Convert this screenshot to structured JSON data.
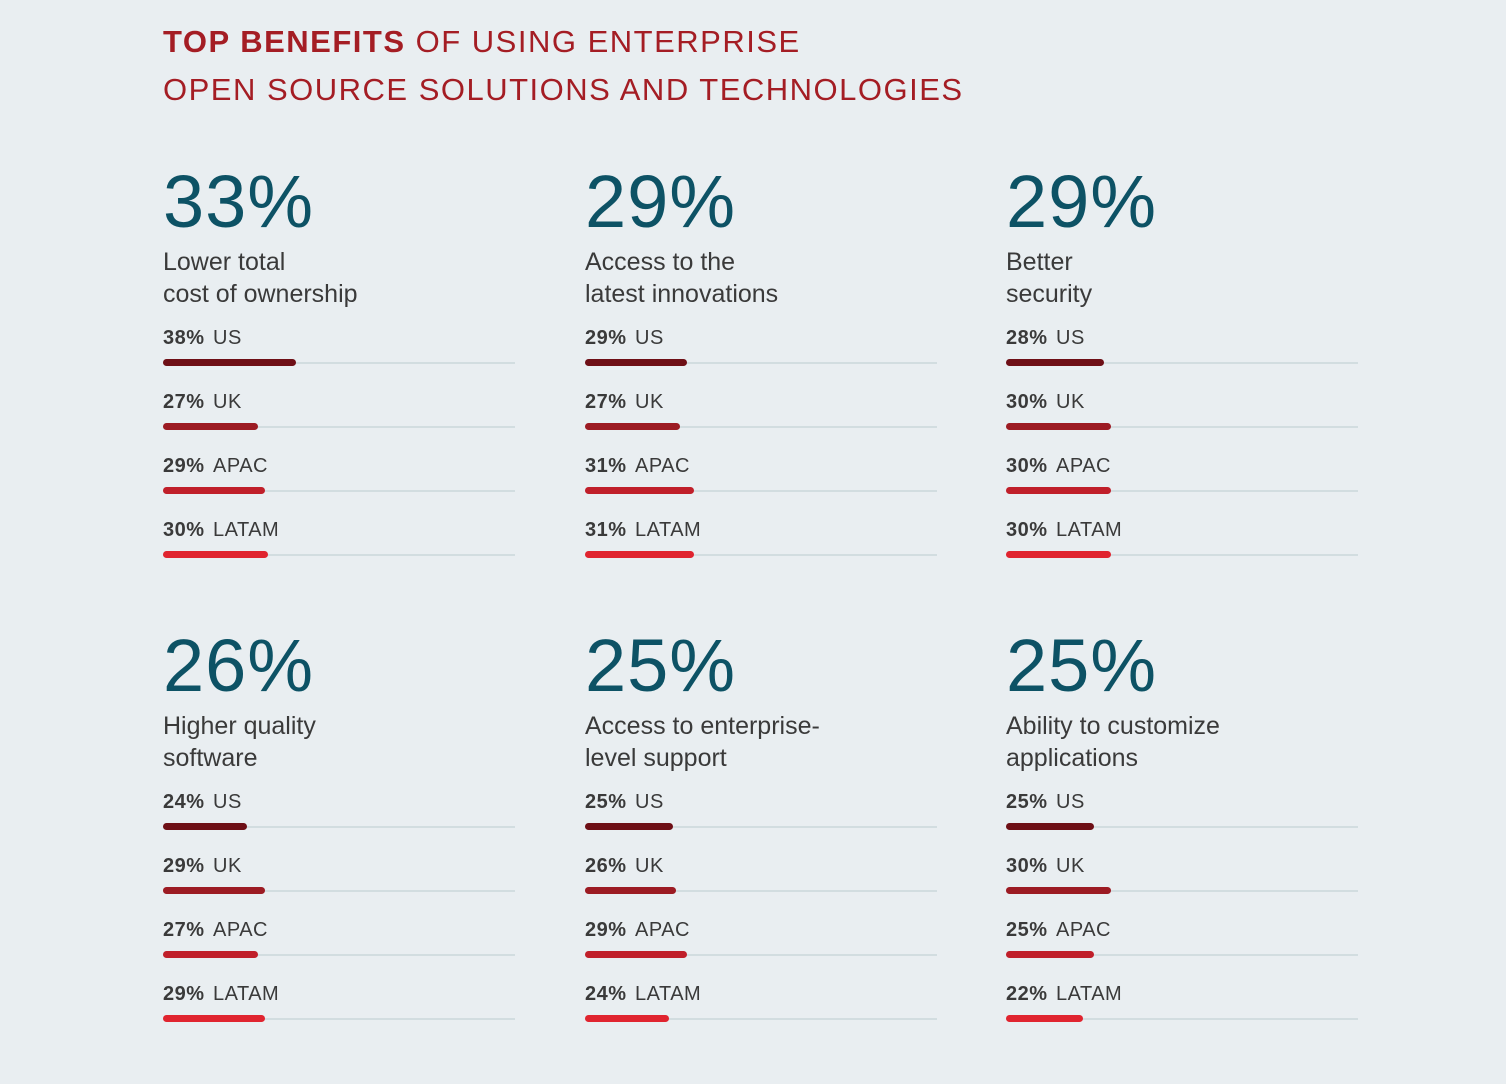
{
  "title": {
    "bold": "TOP BENEFITS",
    "rest_line1": " OF USING ENTERPRISE",
    "line2": "OPEN SOURCE SOLUTIONS AND TECHNOLOGIES"
  },
  "colors": {
    "US": "#6e0f16",
    "UK": "#9c1b23",
    "APAC": "#c01f2a",
    "LATAM": "#e0242f",
    "track": "#d2dde0"
  },
  "chart_data": [
    {
      "type": "bar",
      "title": "33%",
      "label_line1": "Lower total",
      "label_line2": "cost of ownership",
      "categories": [
        "US",
        "UK",
        "APAC",
        "LATAM"
      ],
      "values": [
        38,
        27,
        29,
        30
      ],
      "value_labels": [
        "38%",
        "27%",
        "29%",
        "30%"
      ],
      "xlim": [
        0,
        100
      ]
    },
    {
      "type": "bar",
      "title": "29%",
      "label_line1": "Access to the",
      "label_line2": "latest innovations",
      "categories": [
        "US",
        "UK",
        "APAC",
        "LATAM"
      ],
      "values": [
        29,
        27,
        31,
        31
      ],
      "value_labels": [
        "29%",
        "27%",
        "31%",
        "31%"
      ],
      "xlim": [
        0,
        100
      ]
    },
    {
      "type": "bar",
      "title": "29%",
      "label_line1": "Better",
      "label_line2": "security",
      "categories": [
        "US",
        "UK",
        "APAC",
        "LATAM"
      ],
      "values": [
        28,
        30,
        30,
        30
      ],
      "value_labels": [
        "28%",
        "30%",
        "30%",
        "30%"
      ],
      "xlim": [
        0,
        100
      ]
    },
    {
      "type": "bar",
      "title": "26%",
      "label_line1": "Higher quality",
      "label_line2": "software",
      "categories": [
        "US",
        "UK",
        "APAC",
        "LATAM"
      ],
      "values": [
        24,
        29,
        27,
        29
      ],
      "value_labels": [
        "24%",
        "29%",
        "27%",
        "29%"
      ],
      "xlim": [
        0,
        100
      ]
    },
    {
      "type": "bar",
      "title": "25%",
      "label_line1": "Access to enterprise-",
      "label_line2": "level support",
      "categories": [
        "US",
        "UK",
        "APAC",
        "LATAM"
      ],
      "values": [
        25,
        26,
        29,
        24
      ],
      "value_labels": [
        "25%",
        "26%",
        "29%",
        "24%"
      ],
      "xlim": [
        0,
        100
      ]
    },
    {
      "type": "bar",
      "title": "25%",
      "label_line1": "Ability to customize",
      "label_line2": "applications",
      "categories": [
        "US",
        "UK",
        "APAC",
        "LATAM"
      ],
      "values": [
        25,
        30,
        25,
        22
      ],
      "value_labels": [
        "25%",
        "30%",
        "25%",
        "22%"
      ],
      "xlim": [
        0,
        100
      ]
    }
  ]
}
